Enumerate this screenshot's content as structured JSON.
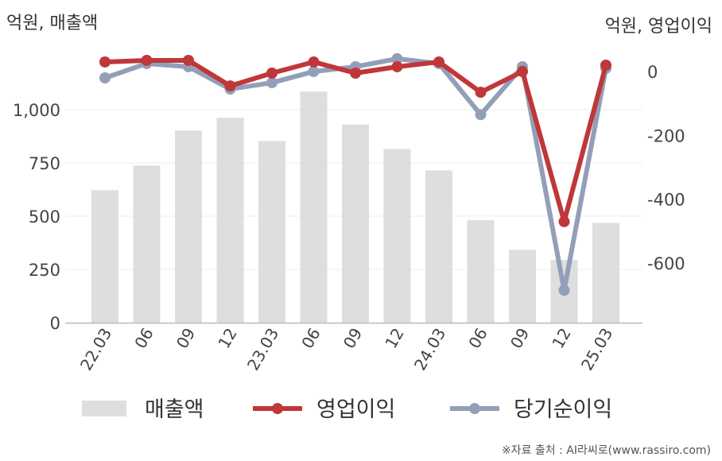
{
  "chart_data": {
    "type": "bar",
    "categories": [
      "22.03",
      "06",
      "09",
      "12",
      "23.03",
      "06",
      "09",
      "12",
      "24.03",
      "06",
      "09",
      "12",
      "25.03"
    ],
    "series": [
      {
        "name": "매출액",
        "type": "bar",
        "axis": "left",
        "color": "#dedede",
        "values": [
          622,
          738,
          902,
          962,
          853,
          1085,
          930,
          815,
          715,
          482,
          342,
          295,
          468
        ]
      },
      {
        "name": "영업이익",
        "type": "line",
        "axis": "right",
        "color": "#c0373a",
        "values": [
          30,
          35,
          35,
          -45,
          -5,
          30,
          -5,
          15,
          30,
          -65,
          0,
          -470,
          20
        ]
      },
      {
        "name": "당기순이익",
        "type": "line",
        "axis": "right",
        "color": "#939fb8",
        "values": [
          -20,
          25,
          15,
          -55,
          -35,
          0,
          15,
          40,
          25,
          -135,
          15,
          -685,
          10
        ]
      }
    ],
    "left_axis": {
      "unit_label": "억원, 매출액",
      "ylim": [
        0,
        1250
      ],
      "ticks": [
        0,
        250,
        500,
        750,
        1000
      ],
      "tick_labels": [
        "0",
        "250",
        "500",
        "750",
        "1,000"
      ]
    },
    "right_axis": {
      "unit_label": "억원, 영업이익",
      "ylim": [
        -800,
        60
      ],
      "ticks": [
        0,
        -200,
        -400,
        -600
      ],
      "tick_labels": [
        "0",
        "-200",
        "-400",
        "-600"
      ]
    },
    "grid": true,
    "legend_position": "bottom",
    "source": "※자료 출처 : AI라씨로(www.rassiro.com)"
  }
}
